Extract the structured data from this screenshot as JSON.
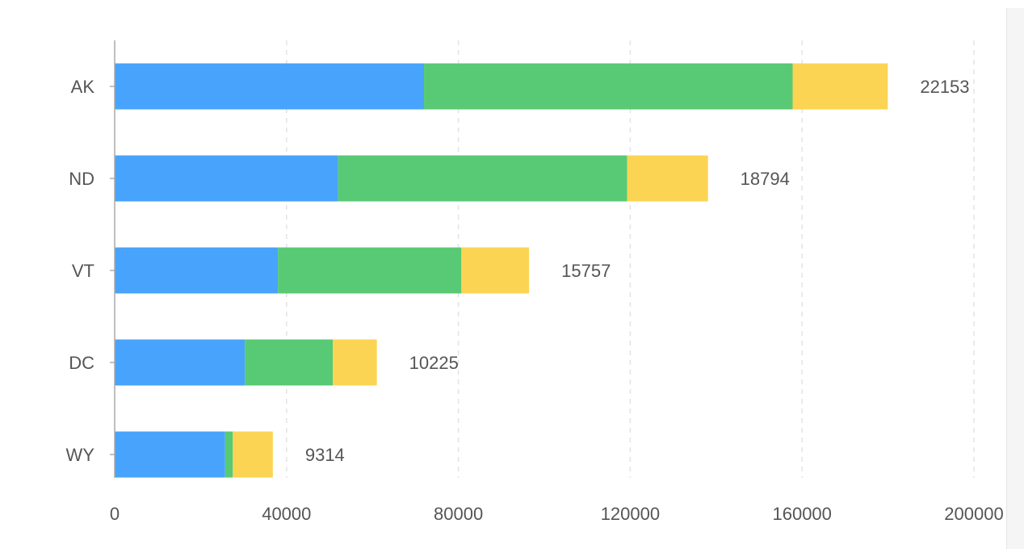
{
  "chart_data": {
    "type": "bar",
    "orientation": "horizontal",
    "stacked": true,
    "categories": [
      "AK",
      "ND",
      "VT",
      "DC",
      "WY"
    ],
    "series": [
      {
        "values": [
          72000,
          52000,
          38000,
          30300,
          25700
        ],
        "color": "#47a3fb"
      },
      {
        "values": [
          85800,
          67300,
          42700,
          20500,
          1800
        ],
        "color": "#58c974"
      },
      {
        "values": [
          22153,
          18794,
          15757,
          10225,
          9314
        ],
        "color": "#fbd453"
      }
    ],
    "data_labels": [
      "22153",
      "18794",
      "15757",
      "10225",
      "9314"
    ],
    "x_ticks": [
      "0",
      "40000",
      "80000",
      "120000",
      "160000",
      "200000"
    ],
    "xlim": [
      0,
      200000
    ],
    "grid": "vertical dashed",
    "title": "",
    "xlabel": "",
    "ylabel": ""
  }
}
